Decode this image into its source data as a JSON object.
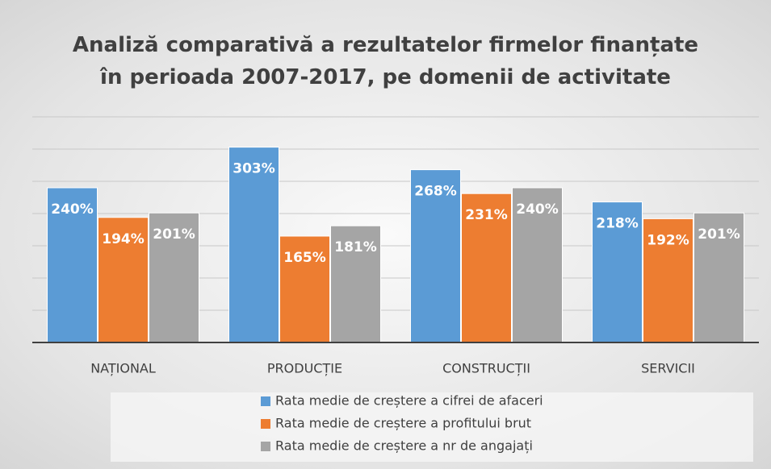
{
  "chart_data": {
    "type": "bar",
    "title": "Analiză comparativă a rezultatelor firmelor finanțate în perioada 2007-2017,  pe domenii de activitate",
    "categories": [
      "NAȚIONAL",
      "PRODUCȚIE",
      "CONSTRUCȚII",
      "SERVICII"
    ],
    "series": [
      {
        "name": "Rata medie de creștere a cifrei de afaceri",
        "color": "#5b9bd5",
        "values": [
          240,
          303,
          268,
          218
        ],
        "value_labels": [
          "240%",
          "303%",
          "268%",
          "218%"
        ]
      },
      {
        "name": "Rata medie de creștere a profitului brut",
        "color": "#ed7d31",
        "values": [
          194,
          165,
          231,
          192
        ],
        "value_labels": [
          "194%",
          "165%",
          "231%",
          "192%"
        ]
      },
      {
        "name": "Rata medie de creștere a nr de angajați",
        "color": "#a5a5a5",
        "values": [
          201,
          181,
          240,
          201
        ],
        "value_labels": [
          "201%",
          "181%",
          "240%",
          "201%"
        ]
      }
    ],
    "ylim": [
      0,
      350
    ],
    "yticks": [
      0,
      50,
      100,
      150,
      200,
      250,
      300,
      350
    ],
    "grid": true,
    "legend": "bottom"
  }
}
